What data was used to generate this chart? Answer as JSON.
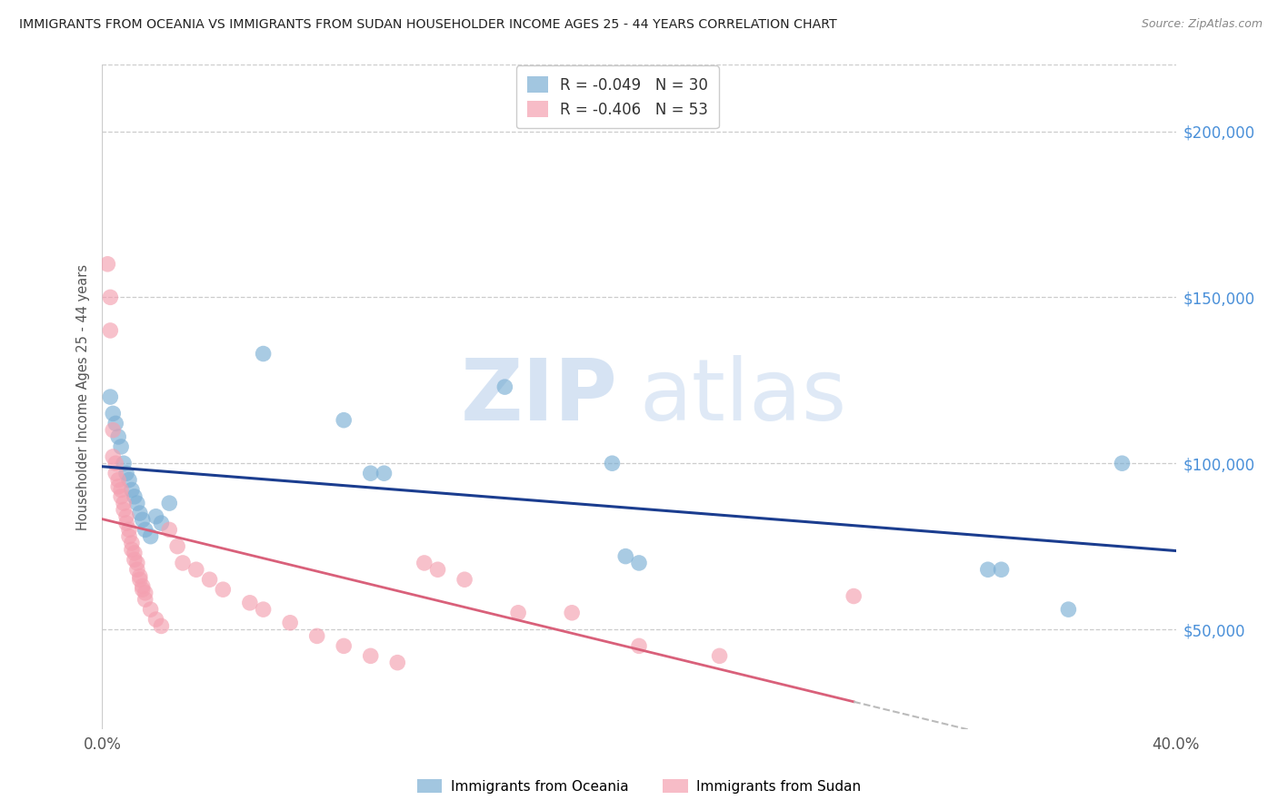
{
  "title": "IMMIGRANTS FROM OCEANIA VS IMMIGRANTS FROM SUDAN HOUSEHOLDER INCOME AGES 25 - 44 YEARS CORRELATION CHART",
  "source": "Source: ZipAtlas.com",
  "ylabel": "Householder Income Ages 25 - 44 years",
  "x_min": 0.0,
  "x_max": 0.4,
  "y_min": 20000,
  "y_max": 220000,
  "x_ticks": [
    0.0,
    0.05,
    0.1,
    0.15,
    0.2,
    0.25,
    0.3,
    0.35,
    0.4
  ],
  "y_ticks": [
    50000,
    100000,
    150000,
    200000
  ],
  "y_tick_labels": [
    "$50,000",
    "$100,000",
    "$150,000",
    "$200,000"
  ],
  "oceania_color": "#7BAFD4",
  "sudan_color": "#F4A0B0",
  "oceania_line_color": "#1B3D8F",
  "sudan_line_color": "#D9607A",
  "sudan_ext_color": "#BBBBBB",
  "R_oceania": -0.049,
  "N_oceania": 30,
  "R_sudan": -0.406,
  "N_sudan": 53,
  "legend_label_oceania": "Immigrants from Oceania",
  "legend_label_sudan": "Immigrants from Sudan",
  "watermark_part1": "ZIP",
  "watermark_part2": "atlas",
  "oceania_x": [
    0.003,
    0.004,
    0.005,
    0.006,
    0.007,
    0.008,
    0.009,
    0.01,
    0.011,
    0.012,
    0.013,
    0.014,
    0.015,
    0.016,
    0.018,
    0.02,
    0.022,
    0.025,
    0.06,
    0.09,
    0.1,
    0.105,
    0.15,
    0.19,
    0.195,
    0.2,
    0.33,
    0.335,
    0.36,
    0.38
  ],
  "oceania_y": [
    120000,
    115000,
    112000,
    108000,
    105000,
    100000,
    97000,
    95000,
    92000,
    90000,
    88000,
    85000,
    83000,
    80000,
    78000,
    84000,
    82000,
    88000,
    133000,
    113000,
    97000,
    97000,
    123000,
    100000,
    72000,
    70000,
    68000,
    68000,
    56000,
    100000
  ],
  "sudan_x": [
    0.002,
    0.003,
    0.003,
    0.004,
    0.004,
    0.005,
    0.005,
    0.006,
    0.006,
    0.007,
    0.007,
    0.008,
    0.008,
    0.009,
    0.009,
    0.01,
    0.01,
    0.011,
    0.011,
    0.012,
    0.012,
    0.013,
    0.013,
    0.014,
    0.014,
    0.015,
    0.015,
    0.016,
    0.016,
    0.018,
    0.02,
    0.022,
    0.025,
    0.028,
    0.03,
    0.035,
    0.04,
    0.045,
    0.055,
    0.06,
    0.07,
    0.08,
    0.09,
    0.1,
    0.11,
    0.12,
    0.125,
    0.135,
    0.155,
    0.175,
    0.2,
    0.23,
    0.28
  ],
  "sudan_y": [
    160000,
    150000,
    140000,
    110000,
    102000,
    100000,
    97000,
    95000,
    93000,
    92000,
    90000,
    88000,
    86000,
    84000,
    82000,
    80000,
    78000,
    76000,
    74000,
    73000,
    71000,
    70000,
    68000,
    66000,
    65000,
    63000,
    62000,
    61000,
    59000,
    56000,
    53000,
    51000,
    80000,
    75000,
    70000,
    68000,
    65000,
    62000,
    58000,
    56000,
    52000,
    48000,
    45000,
    42000,
    40000,
    70000,
    68000,
    65000,
    55000,
    55000,
    45000,
    42000,
    60000
  ]
}
